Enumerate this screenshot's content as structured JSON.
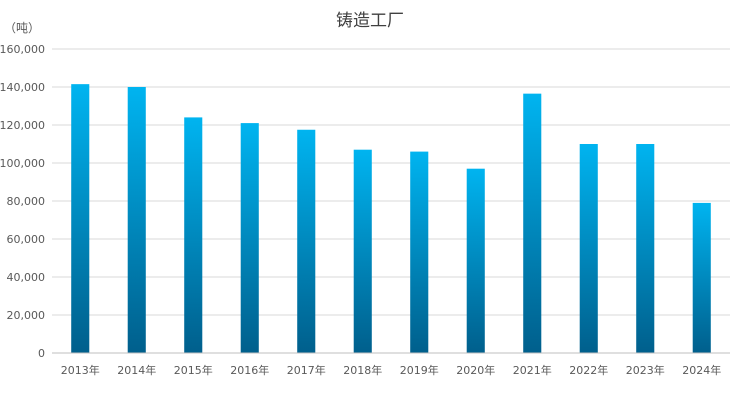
{
  "chart_data": {
    "type": "bar",
    "title": "铸造工厂",
    "ylabel": "（吨）",
    "xlabel": "",
    "categories": [
      "2013年",
      "2014年",
      "2015年",
      "2016年",
      "2017年",
      "2018年",
      "2019年",
      "2020年",
      "2021年",
      "2022年",
      "2023年",
      "2024年"
    ],
    "values": [
      141500,
      140000,
      124000,
      121000,
      117500,
      107000,
      106000,
      97000,
      136500,
      110000,
      110000,
      79000
    ],
    "ylim": [
      0,
      160000
    ],
    "yticks": [
      "0",
      "20,000",
      "40,000",
      "60,000",
      "80,000",
      "100,000",
      "120,000",
      "140,000",
      "160,000"
    ],
    "grid": true,
    "legend": "none",
    "colors": {
      "bar_top": "#00b4f0",
      "bar_bottom": "#005f8c"
    }
  }
}
